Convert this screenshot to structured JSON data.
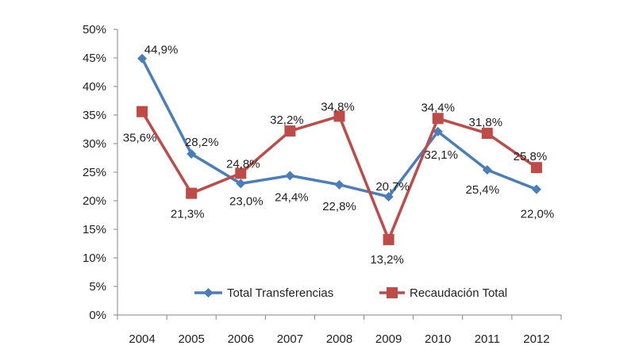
{
  "chart_data": {
    "type": "line",
    "categories": [
      "2004",
      "2005",
      "2006",
      "2007",
      "2008",
      "2009",
      "2010",
      "2011",
      "2012"
    ],
    "ylim": [
      0,
      50
    ],
    "yticks": [
      "0%",
      "5%",
      "10%",
      "15%",
      "20%",
      "25%",
      "30%",
      "35%",
      "40%",
      "45%",
      "50%"
    ],
    "grid": false,
    "legend_placement": "bottom-inside",
    "series": [
      {
        "name": "Total Transferencias",
        "color": "#4a7ebb",
        "marker": "diamond",
        "values": [
          44.9,
          28.2,
          23.0,
          24.4,
          22.8,
          20.7,
          32.1,
          25.4,
          22.0
        ],
        "labels": [
          "44,9%",
          "28,2%",
          "23,0%",
          "24,4%",
          "22,8%",
          "20,7%",
          "32,1%",
          "25,4%",
          "22,0%"
        ]
      },
      {
        "name": "Recaudación Total",
        "color": "#be4b48",
        "marker": "square",
        "values": [
          35.6,
          21.3,
          24.8,
          32.2,
          34.8,
          13.2,
          34.4,
          31.8,
          25.8
        ],
        "labels": [
          "35,6%",
          "21,3%",
          "24,8%",
          "32,2%",
          "34,8%",
          "13,2%",
          "34,4%",
          "31,8%",
          "25,8%"
        ]
      }
    ]
  }
}
